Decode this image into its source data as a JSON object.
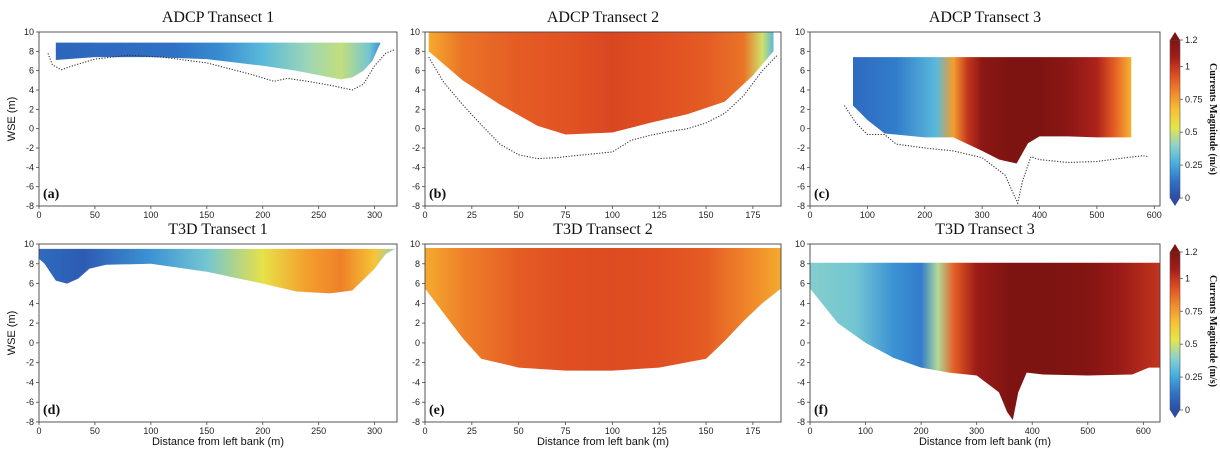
{
  "figure": {
    "colormap": [
      "#2b4ca6",
      "#2f75c8",
      "#48b0e0",
      "#8fd3c9",
      "#e5e64a",
      "#f8c033",
      "#f08a2a",
      "#e04d22",
      "#a51d1a",
      "#7d1411"
    ],
    "xlabel": "Distance from left bank (m)",
    "ylabel": "WSE (m)",
    "colorbar": {
      "label": "Currents Magnitude (m/s)",
      "min": 0,
      "max": 1.2,
      "ticks": [
        "0",
        "0.25",
        "0.5",
        "0.75",
        "1",
        "1.2"
      ]
    }
  },
  "chart_data": [
    {
      "type": "heatmap",
      "id": "a",
      "panel_label": "(a)",
      "title": "ADCP Transect 1",
      "xlabel": "",
      "ylabel": "WSE (m)",
      "xlim": [
        0,
        320
      ],
      "ylim": [
        -8,
        10
      ],
      "xticks": [
        0,
        50,
        100,
        150,
        200,
        250,
        300
      ],
      "yticks": [
        -8,
        -6,
        -4,
        -2,
        0,
        2,
        4,
        6,
        8,
        10
      ],
      "surface": 8.9,
      "bed_style": "dotted",
      "bed_x": [
        8,
        12,
        20,
        30,
        50,
        80,
        110,
        150,
        190,
        210,
        222,
        240,
        260,
        280,
        290,
        300,
        310,
        318
      ],
      "bed_y": [
        7.8,
        6.6,
        6.1,
        6.5,
        7.2,
        7.6,
        7.4,
        6.8,
        5.6,
        4.9,
        5.2,
        4.9,
        4.5,
        4.0,
        4.6,
        6.5,
        7.8,
        8.2
      ],
      "fill_left": 15,
      "fill_right": 305,
      "fill_bottom_x": [
        15,
        50,
        100,
        150,
        200,
        230,
        260,
        270,
        280,
        290,
        298,
        305
      ],
      "fill_bottom_y": [
        7.1,
        7.4,
        7.4,
        7.2,
        6.5,
        6.0,
        5.3,
        5.1,
        5.3,
        6.0,
        7.0,
        8.8
      ],
      "speed_x": [
        15,
        60,
        120,
        160,
        200,
        240,
        270,
        295,
        305
      ],
      "speed_v": [
        0.08,
        0.1,
        0.12,
        0.18,
        0.3,
        0.42,
        0.48,
        0.35,
        0.2
      ]
    },
    {
      "type": "heatmap",
      "id": "b",
      "panel_label": "(b)",
      "title": "ADCP Transect 2",
      "xlabel": "",
      "ylabel": "",
      "xlim": [
        0,
        190
      ],
      "ylim": [
        -8,
        10
      ],
      "xticks": [
        0,
        25,
        50,
        75,
        100,
        125,
        150,
        175
      ],
      "yticks": [
        -8,
        -6,
        -4,
        -2,
        0,
        2,
        4,
        6,
        8,
        10
      ],
      "surface": 10,
      "bed_style": "dotted",
      "bed_x": [
        2,
        10,
        20,
        30,
        40,
        50,
        60,
        70,
        80,
        90,
        100,
        110,
        120,
        130,
        140,
        150,
        160,
        170,
        180,
        188
      ],
      "bed_y": [
        7.4,
        4.8,
        2.5,
        0.4,
        -1.6,
        -2.7,
        -3.1,
        -3.0,
        -2.8,
        -2.6,
        -2.4,
        -1.2,
        -0.7,
        -0.3,
        0.0,
        0.6,
        1.6,
        3.4,
        6.0,
        7.6
      ],
      "fill_left": 2,
      "fill_right": 186,
      "fill_bottom_x": [
        2,
        20,
        40,
        60,
        75,
        100,
        120,
        140,
        160,
        175,
        186
      ],
      "fill_bottom_y": [
        8.0,
        5.0,
        2.5,
        0.3,
        -0.6,
        -0.4,
        0.6,
        1.5,
        2.8,
        5.5,
        8.0
      ],
      "speed_x": [
        2,
        20,
        50,
        75,
        100,
        125,
        150,
        170,
        180,
        186
      ],
      "speed_v": [
        0.72,
        0.85,
        0.9,
        0.92,
        0.95,
        0.93,
        0.9,
        0.85,
        0.5,
        0.3
      ]
    },
    {
      "type": "heatmap",
      "id": "c",
      "panel_label": "(c)",
      "title": "ADCP Transect 3",
      "xlabel": "",
      "ylabel": "",
      "xlim": [
        0,
        610
      ],
      "ylim": [
        -8,
        10
      ],
      "xticks": [
        0,
        100,
        200,
        300,
        400,
        500,
        600
      ],
      "yticks": [
        -8,
        -6,
        -4,
        -2,
        0,
        2,
        4,
        6,
        8,
        10
      ],
      "surface": 7.4,
      "bed_style": "dotted",
      "bed_x": [
        60,
        80,
        100,
        130,
        150,
        200,
        250,
        300,
        340,
        355,
        362,
        370,
        385,
        400,
        450,
        500,
        550,
        580,
        590
      ],
      "bed_y": [
        2.4,
        0.6,
        -0.6,
        -0.6,
        -1.6,
        -2.0,
        -2.3,
        -3.0,
        -4.8,
        -6.8,
        -7.7,
        -5.5,
        -2.9,
        -3.2,
        -3.5,
        -3.4,
        -3.0,
        -2.8,
        -2.9
      ],
      "fill_left": 75,
      "fill_right": 560,
      "fill_bottom_x": [
        75,
        100,
        130,
        200,
        250,
        300,
        330,
        360,
        380,
        400,
        450,
        500,
        560
      ],
      "fill_bottom_y": [
        2.4,
        0.9,
        -0.5,
        -0.9,
        -0.9,
        -2.3,
        -3.2,
        -3.6,
        -1.5,
        -0.8,
        -0.8,
        -0.9,
        -0.9
      ],
      "speed_x": [
        75,
        150,
        220,
        250,
        275,
        300,
        350,
        400,
        450,
        500,
        530,
        560
      ],
      "speed_v": [
        0.1,
        0.15,
        0.3,
        0.75,
        1.0,
        1.15,
        1.2,
        1.2,
        1.15,
        1.05,
        0.9,
        0.7
      ]
    },
    {
      "type": "heatmap",
      "id": "d",
      "panel_label": "(d)",
      "title": "T3D Transect 1",
      "xlabel": "Distance from left bank (m)",
      "ylabel": "WSE (m)",
      "xlim": [
        0,
        320
      ],
      "ylim": [
        -8,
        10
      ],
      "xticks": [
        0,
        50,
        100,
        150,
        200,
        250,
        300
      ],
      "yticks": [
        -8,
        -6,
        -4,
        -2,
        0,
        2,
        4,
        6,
        8,
        10
      ],
      "surface": 9.5,
      "bed_style": "fill",
      "fill_left": 0,
      "fill_right": 320,
      "fill_bottom_x": [
        0,
        5,
        15,
        25,
        35,
        45,
        60,
        100,
        150,
        200,
        230,
        260,
        280,
        300,
        310,
        320
      ],
      "fill_bottom_y": [
        8.5,
        8.0,
        6.3,
        6.0,
        6.5,
        7.5,
        7.9,
        8.0,
        7.2,
        6.0,
        5.2,
        5.0,
        5.3,
        7.5,
        9.0,
        9.6
      ],
      "speed_x": [
        0,
        40,
        100,
        150,
        200,
        240,
        270,
        300,
        320
      ],
      "speed_v": [
        0.1,
        0.05,
        0.2,
        0.35,
        0.55,
        0.75,
        0.82,
        0.65,
        0.4
      ]
    },
    {
      "type": "heatmap",
      "id": "e",
      "panel_label": "(e)",
      "title": "T3D Transect 2",
      "xlabel": "Distance from left bank (m)",
      "ylabel": "",
      "xlim": [
        0,
        190
      ],
      "ylim": [
        -8,
        10
      ],
      "xticks": [
        0,
        25,
        50,
        75,
        100,
        125,
        150,
        175
      ],
      "yticks": [
        -8,
        -6,
        -4,
        -2,
        0,
        2,
        4,
        6,
        8,
        10
      ],
      "surface": 9.6,
      "bed_style": "fill",
      "fill_left": 0,
      "fill_right": 190,
      "fill_bottom_x": [
        0,
        10,
        20,
        30,
        50,
        75,
        100,
        125,
        150,
        160,
        170,
        180,
        190
      ],
      "fill_bottom_y": [
        5.5,
        3.0,
        0.5,
        -1.6,
        -2.5,
        -2.8,
        -2.8,
        -2.5,
        -1.6,
        0.2,
        2.2,
        4.0,
        5.5
      ],
      "speed_x": [
        0,
        20,
        50,
        75,
        100,
        125,
        150,
        170,
        190
      ],
      "speed_v": [
        0.72,
        0.82,
        0.9,
        0.93,
        0.94,
        0.93,
        0.9,
        0.82,
        0.72
      ]
    },
    {
      "type": "heatmap",
      "id": "f",
      "panel_label": "(f)",
      "title": "T3D Transect 3",
      "xlabel": "Distance from left bank (m)",
      "ylabel": "",
      "xlim": [
        0,
        630
      ],
      "ylim": [
        -8,
        10
      ],
      "xticks": [
        0,
        100,
        200,
        300,
        400,
        500,
        600
      ],
      "yticks": [
        -8,
        -6,
        -4,
        -2,
        0,
        2,
        4,
        6,
        8,
        10
      ],
      "surface": 8.1,
      "bed_style": "fill",
      "fill_left": 0,
      "fill_right": 630,
      "fill_bottom_x": [
        0,
        50,
        100,
        150,
        200,
        250,
        300,
        340,
        355,
        365,
        375,
        390,
        420,
        500,
        580,
        610,
        630
      ],
      "fill_bottom_y": [
        5.5,
        2.0,
        0.0,
        -1.5,
        -2.5,
        -3.0,
        -3.3,
        -5.0,
        -7.0,
        -7.8,
        -5.0,
        -3.0,
        -3.2,
        -3.3,
        -3.2,
        -2.5,
        -2.5
      ],
      "speed_x": [
        0,
        80,
        150,
        200,
        230,
        260,
        300,
        360,
        420,
        500,
        560,
        630
      ],
      "speed_v": [
        0.38,
        0.35,
        0.2,
        0.15,
        0.45,
        0.9,
        1.1,
        1.2,
        1.2,
        1.18,
        1.1,
        1.0
      ]
    }
  ]
}
